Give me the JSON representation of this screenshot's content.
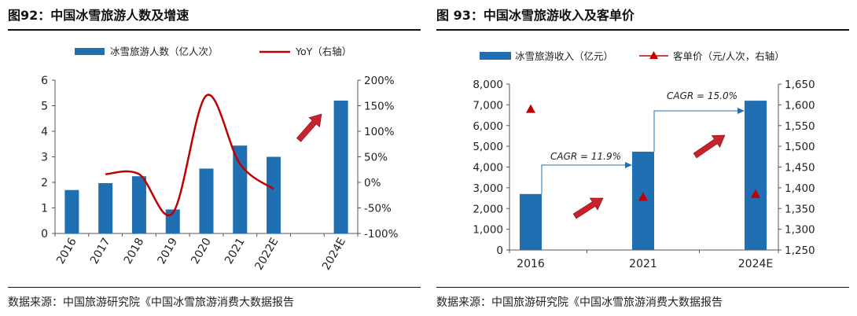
{
  "left": {
    "figure_title": "图92：中国冰雪旅游人数及增速",
    "source": "数据来源：中国旅游研究院《中国冰雪旅游消费大数据报告"
  },
  "right": {
    "figure_title": "图 93：中国冰雪旅游收入及客单价",
    "source": "数据来源：中国旅游研究院《中国冰雪旅游消费大数据报告"
  },
  "colors": {
    "bar": "#1f6fb2",
    "line": "#c00000",
    "marker": "#c00000",
    "arrow": "#c8232c",
    "connector": "#1f6fb2"
  },
  "chart_data": [
    {
      "type": "bar",
      "title": "",
      "categories": [
        "2016",
        "2017",
        "2018",
        "2019",
        "2020",
        "2021",
        "2022E",
        "",
        "2024E"
      ],
      "series": [
        {
          "name": "冰雪旅游人数（亿人次）",
          "type": "bar",
          "axis": "left",
          "values": [
            1.7,
            1.97,
            2.24,
            0.94,
            2.54,
            3.44,
            3.0,
            null,
            5.2
          ]
        },
        {
          "name": "YoY（右轴）",
          "type": "line",
          "axis": "right",
          "smooth": true,
          "values": [
            null,
            16,
            16,
            -60,
            170,
            36,
            -13,
            null,
            null
          ]
        }
      ],
      "ylim_left": [
        0,
        6
      ],
      "yticks_left": [
        "0",
        "1",
        "2",
        "3",
        "4",
        "5",
        "6"
      ],
      "ylim_right": [
        -100,
        200
      ],
      "yticks_right": [
        "-100%",
        "-50%",
        "0%",
        "50%",
        "100%",
        "150%",
        "200%"
      ],
      "x_tick_rotation": -60,
      "legend": "top",
      "grid": false
    },
    {
      "type": "bar",
      "title": "",
      "categories": [
        "2016",
        "2021",
        "2024E"
      ],
      "series": [
        {
          "name": "冰雪旅游收入（亿元）",
          "type": "bar",
          "axis": "left",
          "values": [
            2700,
            4740,
            7200
          ]
        },
        {
          "name": "客单价（元/人次，右轴）",
          "type": "scatter",
          "marker": "triangle",
          "axis": "right",
          "values": [
            1590,
            1378,
            1385
          ]
        }
      ],
      "ylim_left": [
        0,
        8000
      ],
      "yticks_left": [
        "0",
        "1,000",
        "2,000",
        "3,000",
        "4,000",
        "5,000",
        "6,000",
        "7,000",
        "8,000"
      ],
      "ylim_right": [
        1250,
        1650
      ],
      "yticks_right": [
        "1,250",
        "1,300",
        "1,350",
        "1,400",
        "1,450",
        "1,500",
        "1,550",
        "1,600",
        "1,650"
      ],
      "annotations": [
        "CAGR = 11.9%",
        "CAGR = 15.0%"
      ],
      "legend": "top",
      "grid": false
    }
  ]
}
